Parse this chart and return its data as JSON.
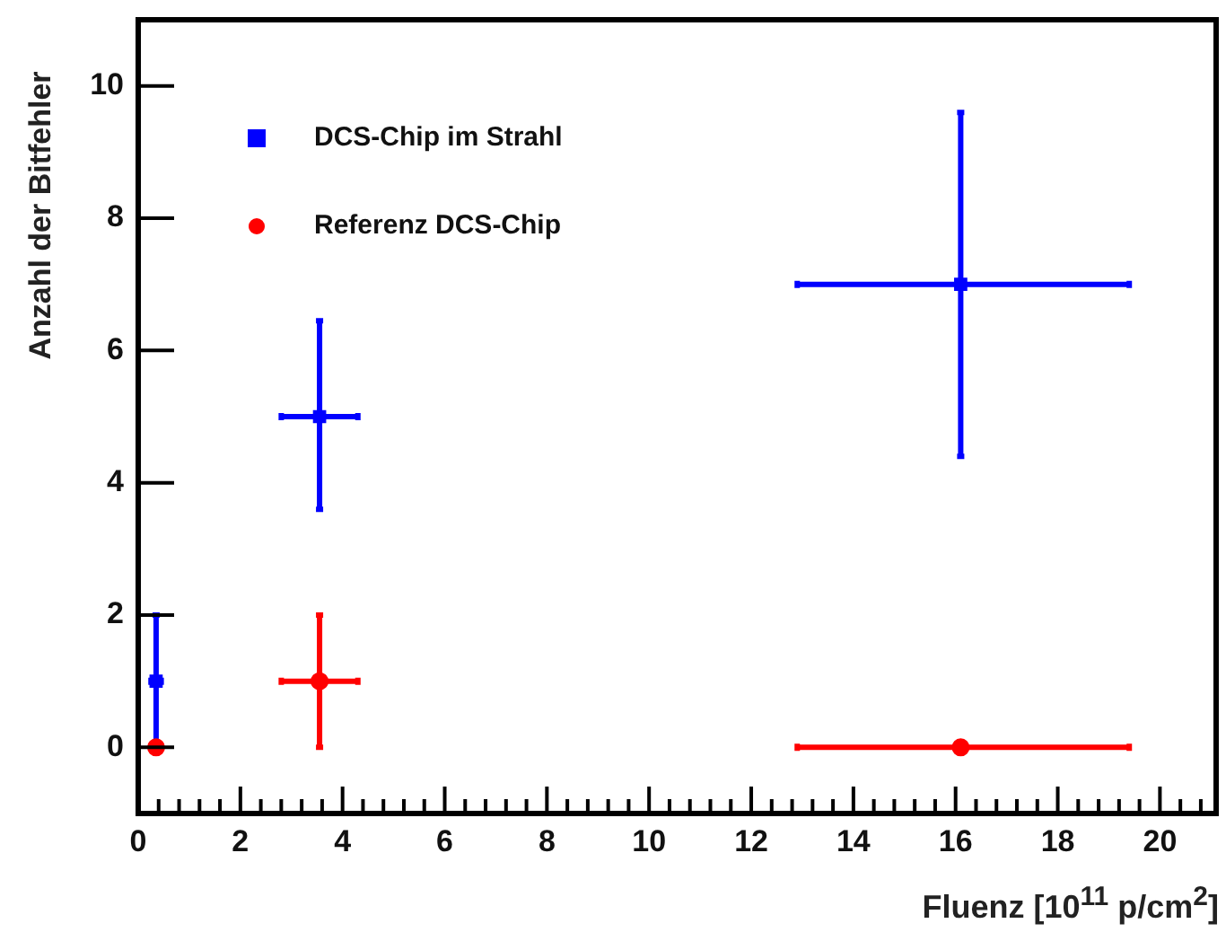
{
  "chart_data": {
    "type": "scatter",
    "xlabel": "Fluenz [10$^{11}$ p/cm$^{2}$]",
    "ylabel": "Anzahl der Bitfehler",
    "xlim": [
      0,
      21.1
    ],
    "ylim": [
      -1,
      11
    ],
    "xticks": [
      0,
      {
        "value": 0.4,
        "label": null
      },
      {
        "value": 0.8,
        "label": null
      },
      {
        "value": 1.2,
        "label": null
      },
      {
        "value": 1.6,
        "label": null
      },
      2,
      {
        "value": 2.4,
        "label": null
      },
      {
        "value": 2.8,
        "label": null
      },
      {
        "value": 3.2,
        "label": null
      },
      {
        "value": 3.6,
        "label": null
      },
      4,
      {
        "value": 4.4,
        "label": null
      },
      {
        "value": 4.8,
        "label": null
      },
      {
        "value": 5.2,
        "label": null
      },
      {
        "value": 5.6,
        "label": null
      },
      6,
      {
        "value": 6.4,
        "label": null
      },
      {
        "value": 6.8,
        "label": null
      },
      {
        "value": 7.2,
        "label": null
      },
      {
        "value": 7.6,
        "label": null
      },
      8,
      {
        "value": 8.4,
        "label": null
      },
      {
        "value": 8.8,
        "label": null
      },
      {
        "value": 9.2,
        "label": null
      },
      {
        "value": 9.6,
        "label": null
      },
      10,
      {
        "value": 10.4,
        "label": null
      },
      {
        "value": 10.8,
        "label": null
      },
      {
        "value": 11.2,
        "label": null
      },
      {
        "value": 11.6,
        "label": null
      },
      12,
      {
        "value": 12.4,
        "label": null
      },
      {
        "value": 12.8,
        "label": null
      },
      {
        "value": 13.2,
        "label": null
      },
      {
        "value": 13.6,
        "label": null
      },
      14,
      {
        "value": 14.4,
        "label": null
      },
      {
        "value": 14.8,
        "label": null
      },
      {
        "value": 15.2,
        "label": null
      },
      {
        "value": 15.6,
        "label": null
      },
      16,
      {
        "value": 16.4,
        "label": null
      },
      {
        "value": 16.8,
        "label": null
      },
      {
        "value": 17.2,
        "label": null
      },
      {
        "value": 17.6,
        "label": null
      },
      18,
      {
        "value": 18.4,
        "label": null
      },
      {
        "value": 18.8,
        "label": null
      },
      {
        "value": 19.2,
        "label": null
      },
      {
        "value": 19.6,
        "label": null
      },
      20,
      {
        "value": 20.4,
        "label": null
      },
      {
        "value": 20.8,
        "label": null
      }
    ],
    "yticks": [
      0,
      2,
      4,
      6,
      8,
      10
    ],
    "legend": "top left",
    "grid": false,
    "series": [
      {
        "name": "DCS-Chip im Strahl",
        "color": "#0000ff",
        "marker": "square",
        "x": [
          0.35,
          3.55,
          16.1
        ],
        "values": [
          1,
          5,
          7
        ],
        "errors": [
          [
            0,
            2
          ],
          [
            3.6,
            6.45
          ],
          [
            4.4,
            9.6
          ]
        ],
        "xerrors": [
          [
            0.25,
            0.45
          ],
          [
            2.8,
            4.3
          ],
          [
            12.9,
            19.4
          ]
        ]
      },
      {
        "name": "Referenz DCS-Chip",
        "color": "#ff0000",
        "marker": "circle",
        "x": [
          0.35,
          3.55,
          16.1
        ],
        "values": [
          0,
          1,
          0
        ],
        "errors": [
          null,
          [
            0,
            2
          ],
          null
        ],
        "xerrors": [
          null,
          [
            2.8,
            4.3
          ],
          [
            12.9,
            19.4
          ]
        ]
      }
    ]
  }
}
